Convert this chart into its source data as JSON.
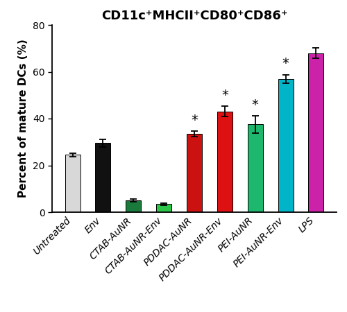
{
  "categories": [
    "Untreated",
    "Env",
    "CTAB-AuNR",
    "CTAB-AuNR-Env",
    "PDDAC-AuNR",
    "PDDAC-AuNR-Env",
    "PEI-AuNR",
    "PEI-AuNR-Env",
    "LPS"
  ],
  "values": [
    24.5,
    29.5,
    5.0,
    3.5,
    33.5,
    43.0,
    37.5,
    57.0,
    68.0
  ],
  "errors": [
    0.8,
    1.6,
    0.7,
    0.5,
    1.2,
    2.2,
    3.8,
    1.8,
    2.2
  ],
  "bar_colors": [
    "#d8d8d8",
    "#111111",
    "#1a7a3c",
    "#2dc44a",
    "#cc1111",
    "#dd1111",
    "#1db86e",
    "#00b5c8",
    "#cc22aa"
  ],
  "significant": [
    false,
    false,
    false,
    false,
    true,
    true,
    true,
    true,
    false
  ],
  "title": "CD11c⁺MHCII⁺CD80⁺CD86⁺",
  "ylabel": "Percent of mature DCs (%)",
  "ylim": [
    0,
    80
  ],
  "yticks": [
    0,
    20,
    40,
    60,
    80
  ],
  "title_fontsize": 13,
  "label_fontsize": 11,
  "tick_fontsize": 10,
  "bar_width": 0.5,
  "star_fontsize": 14
}
